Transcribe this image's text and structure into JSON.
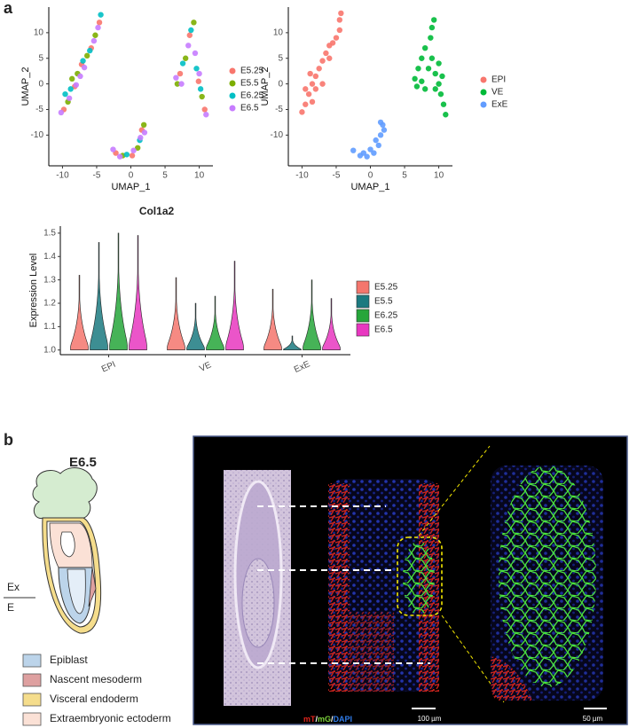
{
  "panels": [
    "a",
    "b"
  ],
  "chart_data": [
    {
      "type": "scatter",
      "xlabel": "UMAP_1",
      "ylabel": "UMAP_2",
      "legend": "right",
      "xlim": [
        -12,
        12
      ],
      "xticks": [
        -10,
        -5,
        0,
        5,
        10
      ],
      "ylim": [
        -16,
        15
      ],
      "yticks": [
        -10,
        -5,
        0,
        5,
        10
      ],
      "series": [
        {
          "name": "E5.25",
          "color": "#F8766D",
          "x": [
            -9.8,
            -8.2,
            -7.2,
            -5.8,
            -4.6,
            7.2,
            8.6,
            9.9,
            10.8,
            -2.2,
            0.2,
            1.6
          ],
          "y": [
            -5,
            -0.5,
            3.8,
            7,
            12,
            2,
            9.5,
            0.5,
            -5,
            -13.5,
            -14,
            -9
          ]
        },
        {
          "name": "E5.5",
          "color": "#7CAE00",
          "x": [
            -9.2,
            -8.6,
            -7.8,
            -6.4,
            -5.2,
            6.8,
            8,
            9.2,
            10.4,
            -1.2,
            1,
            1.9
          ],
          "y": [
            -3.5,
            1,
            2,
            5.5,
            9.5,
            0,
            5,
            12,
            -2.5,
            -14,
            -12.5,
            -8
          ]
        },
        {
          "name": "E6.25",
          "color": "#00BFC4",
          "x": [
            -9.6,
            -8.8,
            -7,
            -6,
            -4.4,
            7.6,
            8.8,
            9.6,
            10.2,
            -0.6,
            1.3
          ],
          "y": [
            -2,
            -1,
            4.5,
            6.5,
            13.5,
            4,
            10.5,
            3,
            -1,
            -13.8,
            -11
          ]
        },
        {
          "name": "E6.5",
          "color": "#C77CFF",
          "x": [
            -10.2,
            -9,
            -8,
            -7.4,
            -6.8,
            -5.4,
            -4.8,
            6.6,
            7.4,
            8.4,
            9.4,
            10,
            11,
            -2.6,
            -1.6,
            0.4,
            1.4,
            2
          ],
          "y": [
            -5.6,
            -2.8,
            -0.2,
            1.5,
            3.2,
            8.4,
            11,
            1.2,
            0,
            7.5,
            6,
            2,
            -6,
            -12.8,
            -14.2,
            -13,
            -10.5,
            -9.5
          ]
        }
      ]
    },
    {
      "type": "scatter",
      "xlabel": "UMAP_1",
      "ylabel": "UMAP_2",
      "legend": "right",
      "xlim": [
        -12,
        12
      ],
      "xticks": [
        -10,
        -5,
        0,
        5,
        10
      ],
      "ylim": [
        -16,
        15
      ],
      "yticks": [
        -10,
        -5,
        0,
        5,
        10
      ],
      "series": [
        {
          "name": "EPI",
          "color": "#F8766D",
          "x": [
            -10,
            -9.5,
            -9,
            -8.5,
            -8.5,
            -8,
            -7.5,
            -8,
            -7,
            -6.5,
            -6,
            -5,
            -4.5,
            -4.5,
            -4.3,
            -9.5,
            -7,
            -6,
            -5.5,
            -8.8
          ],
          "y": [
            -5.5,
            -4,
            -2,
            -3.5,
            0,
            1.5,
            3,
            -1,
            4.5,
            6,
            7.5,
            9,
            10.5,
            12.5,
            13.8,
            -1,
            0,
            5,
            8,
            2
          ]
        },
        {
          "name": "VE",
          "color": "#00BA38",
          "x": [
            6.5,
            7,
            7.5,
            8,
            8.8,
            9,
            9.3,
            8.5,
            9.5,
            10,
            10.3,
            10.7,
            11,
            7.5,
            9,
            10,
            8,
            9.5,
            6.8,
            10.5
          ],
          "y": [
            1,
            3,
            5,
            7,
            9,
            11,
            12.5,
            3,
            2,
            0,
            -2,
            -4,
            -6,
            0.5,
            5,
            4,
            -1,
            -1,
            -0.5,
            1.5
          ]
        },
        {
          "name": "ExE",
          "color": "#619CFF",
          "x": [
            -2.5,
            -1.5,
            -0.5,
            0.5,
            1.2,
            1.5,
            1.8,
            0.8,
            -1,
            2,
            0,
            1.5
          ],
          "y": [
            -13,
            -14,
            -14.2,
            -13.5,
            -12,
            -10,
            -8,
            -11,
            -13.5,
            -9,
            -12.8,
            -7.5
          ]
        }
      ]
    },
    {
      "type": "violin",
      "title": "Col1a2",
      "ylabel": "Expression Level",
      "legend": "right",
      "categories": [
        "EPI",
        "VE",
        "ExE"
      ],
      "ylim": [
        0.98,
        1.53
      ],
      "yticks": [
        {
          "value": 1,
          "label": "1.0"
        },
        1.1,
        1.2,
        1.3,
        1.4,
        {
          "value": 1.5,
          "label": "1.5"
        }
      ],
      "series": [
        {
          "name": "E5.25",
          "color": "#F4766D",
          "values": [
            1.32,
            1.31,
            1.26
          ]
        },
        {
          "name": "E5.5",
          "color": "#1B7A80",
          "values": [
            1.46,
            1.2,
            1.06
          ]
        },
        {
          "name": "E6.25",
          "color": "#26A63A",
          "values": [
            1.5,
            1.23,
            1.3
          ]
        },
        {
          "name": "E6.5",
          "color": "#E837C0",
          "values": [
            1.49,
            1.38,
            1.22
          ]
        }
      ]
    }
  ],
  "figure_b": {
    "stage": "E6.5",
    "boundary": [
      "Ex",
      "E"
    ],
    "legend": [
      {
        "label": "Epiblast",
        "color": "#BCD4EA"
      },
      {
        "label": "Nascent mesoderm",
        "color": "#DEA0A0"
      },
      {
        "label": "Visceral endoderm",
        "color": "#F5DD8C"
      },
      {
        "label": "Extraembryonic ectoderm",
        "color": "#FBE1D6"
      }
    ],
    "micrograph": {
      "channels": [
        {
          "label": "mT",
          "color": "#E0241C"
        },
        {
          "label": "mG",
          "color": "#7BD13A"
        },
        {
          "label": "DAPI",
          "color": "#2F7BE8"
        }
      ],
      "separator": "/",
      "scale_bars": [
        "100 µm",
        "50 µm"
      ]
    }
  }
}
